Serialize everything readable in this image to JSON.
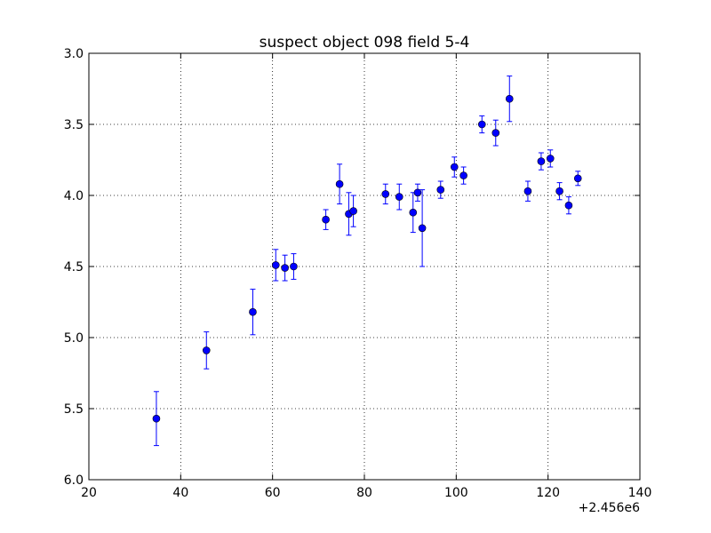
{
  "chart_data": {
    "type": "scatter",
    "title": "suspect object 098 field 5-4",
    "xlabel": "",
    "ylabel": "",
    "x_offset_label": "+2.456e6",
    "xlim": [
      20,
      140
    ],
    "ylim": [
      6.0,
      3.0
    ],
    "y_inverted": true,
    "xticks": [
      20,
      40,
      60,
      80,
      100,
      120,
      140
    ],
    "xtick_labels": [
      "20",
      "40",
      "60",
      "80",
      "100",
      "120",
      "140"
    ],
    "yticks": [
      3.0,
      3.5,
      4.0,
      4.5,
      5.0,
      5.5,
      6.0
    ],
    "ytick_labels": [
      "3.0",
      "3.5",
      "4.0",
      "4.5",
      "5.0",
      "5.5",
      "6.0"
    ],
    "grid": true,
    "marker_color": "#0000ff",
    "series": [
      {
        "points": [
          {
            "x": 34.7,
            "y": 5.57,
            "err": 0.19
          },
          {
            "x": 45.6,
            "y": 5.09,
            "err": 0.13
          },
          {
            "x": 55.7,
            "y": 4.82,
            "err": 0.16
          },
          {
            "x": 60.7,
            "y": 4.49,
            "err": 0.11
          },
          {
            "x": 62.7,
            "y": 4.51,
            "err": 0.09
          },
          {
            "x": 64.6,
            "y": 4.5,
            "err": 0.09
          },
          {
            "x": 71.6,
            "y": 4.17,
            "err": 0.07
          },
          {
            "x": 74.6,
            "y": 3.92,
            "err": 0.14
          },
          {
            "x": 76.6,
            "y": 4.13,
            "err": 0.15
          },
          {
            "x": 77.6,
            "y": 4.11,
            "err": 0.11
          },
          {
            "x": 84.6,
            "y": 3.99,
            "err": 0.07
          },
          {
            "x": 87.6,
            "y": 4.01,
            "err": 0.09
          },
          {
            "x": 90.6,
            "y": 4.12,
            "err": 0.14
          },
          {
            "x": 91.6,
            "y": 3.98,
            "err": 0.06
          },
          {
            "x": 92.6,
            "y": 4.23,
            "err": 0.27
          },
          {
            "x": 96.6,
            "y": 3.96,
            "err": 0.06
          },
          {
            "x": 99.6,
            "y": 3.8,
            "err": 0.07
          },
          {
            "x": 101.6,
            "y": 3.86,
            "err": 0.06
          },
          {
            "x": 105.6,
            "y": 3.5,
            "err": 0.06
          },
          {
            "x": 108.6,
            "y": 3.56,
            "err": 0.09
          },
          {
            "x": 111.6,
            "y": 3.32,
            "err": 0.16
          },
          {
            "x": 115.6,
            "y": 3.97,
            "err": 0.07
          },
          {
            "x": 118.5,
            "y": 3.76,
            "err": 0.06
          },
          {
            "x": 120.5,
            "y": 3.74,
            "err": 0.06
          },
          {
            "x": 122.5,
            "y": 3.97,
            "err": 0.06
          },
          {
            "x": 124.5,
            "y": 4.07,
            "err": 0.06
          },
          {
            "x": 126.5,
            "y": 3.88,
            "err": 0.05
          }
        ]
      }
    ]
  }
}
